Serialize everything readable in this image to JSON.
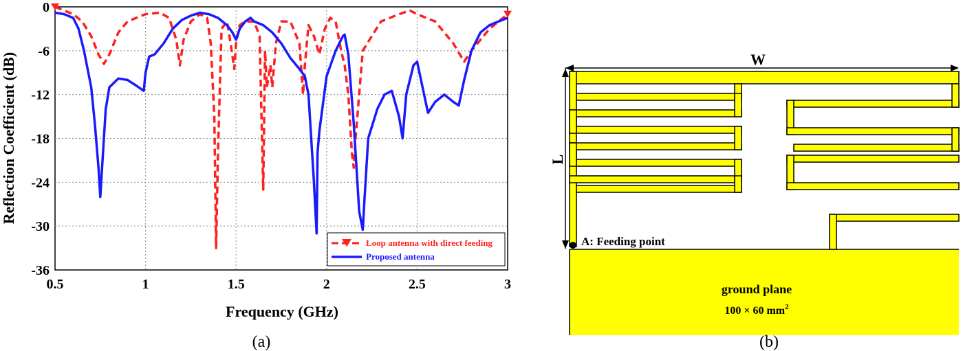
{
  "chart_data": {
    "type": "line",
    "title": "",
    "xlabel": "Frequency (GHz)",
    "ylabel": "Reflection Coefficient (dB)",
    "xlim": [
      0.5,
      3
    ],
    "ylim": [
      -36,
      0
    ],
    "xticks": [
      0.5,
      1,
      1.5,
      2,
      2.5,
      3
    ],
    "xtick_labels": [
      "0.5",
      "1",
      "1.5",
      "2",
      "2.5",
      "3"
    ],
    "yticks": [
      0,
      -6,
      -12,
      -18,
      -24,
      -30,
      -36
    ],
    "ytick_labels": [
      "0",
      "-6",
      "-12",
      "-18",
      "-24",
      "-30",
      "-36"
    ],
    "grid": true,
    "legend_position": "bottom-right",
    "caption": "(a)",
    "series": [
      {
        "name": "Loop antenna with direct feeding",
        "color": "#ff2020",
        "style": "dashed",
        "marker": "triangle-down",
        "x": [
          0.5,
          0.55,
          0.6,
          0.65,
          0.7,
          0.74,
          0.77,
          0.8,
          0.85,
          0.9,
          1.0,
          1.08,
          1.13,
          1.17,
          1.19,
          1.21,
          1.25,
          1.3,
          1.34,
          1.36,
          1.38,
          1.39,
          1.4,
          1.42,
          1.45,
          1.47,
          1.49,
          1.5,
          1.52,
          1.55,
          1.6,
          1.63,
          1.65,
          1.66,
          1.67,
          1.69,
          1.7,
          1.72,
          1.75,
          1.8,
          1.85,
          1.87,
          1.88,
          1.9,
          1.93,
          1.96,
          1.99,
          2.02,
          2.05,
          2.08,
          2.1,
          2.12,
          2.14,
          2.15,
          2.16,
          2.2,
          2.3,
          2.4,
          2.46,
          2.5,
          2.6,
          2.7,
          2.76,
          2.8,
          2.9,
          3.0
        ],
        "values": [
          0,
          -0.5,
          -1.0,
          -2.0,
          -4.0,
          -6.5,
          -7.8,
          -6.5,
          -3.5,
          -2.0,
          -1.0,
          -0.8,
          -1.5,
          -4.5,
          -8.0,
          -4.5,
          -2.0,
          -1.0,
          -1.5,
          -5.0,
          -15.0,
          -33.0,
          -20.0,
          -3.0,
          -2.0,
          -5.0,
          -8.5,
          -5.0,
          -2.5,
          -2.0,
          -2.0,
          -4.0,
          -25.0,
          -6.0,
          -11.0,
          -8.0,
          -11.0,
          -5.0,
          -2.0,
          -2.0,
          -5.0,
          -12.0,
          -8.0,
          -2.5,
          -4.0,
          -6.5,
          -3.0,
          -1.5,
          -2.0,
          -6.0,
          -8.0,
          -12.0,
          -20.0,
          -22.0,
          -18.0,
          -6.0,
          -2.0,
          -1.0,
          -0.5,
          -1.0,
          -2.0,
          -5.0,
          -7.5,
          -6.0,
          -3.0,
          -1.0
        ]
      },
      {
        "name": "Proposed antenna",
        "color": "#1a1aff",
        "style": "solid",
        "marker": "none",
        "x": [
          0.5,
          0.55,
          0.6,
          0.63,
          0.66,
          0.7,
          0.72,
          0.74,
          0.75,
          0.76,
          0.78,
          0.8,
          0.85,
          0.9,
          0.95,
          0.99,
          1.0,
          1.02,
          1.05,
          1.1,
          1.15,
          1.2,
          1.25,
          1.3,
          1.35,
          1.4,
          1.45,
          1.48,
          1.5,
          1.52,
          1.55,
          1.58,
          1.6,
          1.65,
          1.7,
          1.75,
          1.8,
          1.85,
          1.88,
          1.9,
          1.93,
          1.945,
          1.95,
          1.96,
          2.0,
          2.05,
          2.09,
          2.1,
          2.12,
          2.15,
          2.18,
          2.2,
          2.21,
          2.23,
          2.28,
          2.32,
          2.36,
          2.4,
          2.42,
          2.44,
          2.48,
          2.5,
          2.53,
          2.56,
          2.6,
          2.65,
          2.7,
          2.73,
          2.76,
          2.8,
          2.85,
          2.9,
          2.95,
          3.0
        ],
        "values": [
          -0.8,
          -1.0,
          -1.5,
          -3.0,
          -6.0,
          -11.0,
          -16.0,
          -22.0,
          -26.0,
          -22.0,
          -14.0,
          -11.0,
          -9.8,
          -10.0,
          -10.8,
          -11.5,
          -9.0,
          -6.8,
          -6.5,
          -5.0,
          -3.0,
          -1.8,
          -1.2,
          -0.8,
          -1.0,
          -1.5,
          -2.5,
          -3.5,
          -4.5,
          -3.0,
          -2.0,
          -1.5,
          -2.0,
          -2.5,
          -3.5,
          -5.0,
          -7.0,
          -8.5,
          -9.5,
          -12.0,
          -24.0,
          -31.0,
          -20.0,
          -17.0,
          -9.5,
          -6.0,
          -4.0,
          -3.8,
          -6.5,
          -16.0,
          -28.0,
          -30.5,
          -26.0,
          -18.0,
          -14.0,
          -12.0,
          -11.5,
          -15.0,
          -18.0,
          -12.0,
          -8.0,
          -7.5,
          -11.0,
          -14.5,
          -13.0,
          -12.0,
          -13.0,
          -13.5,
          -10.0,
          -6.0,
          -3.5,
          -2.5,
          -2.0,
          -1.5
        ]
      }
    ]
  },
  "diagram": {
    "caption": "(b)",
    "labels": {
      "width": "W",
      "length": "L",
      "feed": "A: Feeding point",
      "ground_plane": "ground plane",
      "ground_size_prefix": "100 × 60 mm",
      "ground_size_exp": "2"
    },
    "colors": {
      "metal": "#ffff00",
      "outline": "#000000"
    }
  }
}
